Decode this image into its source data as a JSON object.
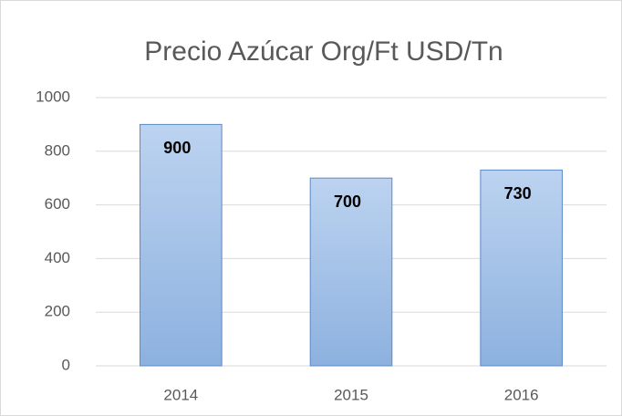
{
  "chart_data": {
    "type": "bar",
    "title": "Precio Azúcar Org/Ft USD/Tn",
    "categories": [
      "2014",
      "2015",
      "2016"
    ],
    "values": [
      900,
      700,
      730
    ],
    "color": "#9dbde6",
    "ylim": [
      0,
      1000
    ],
    "yticks": [
      0,
      200,
      400,
      600,
      800,
      1000
    ],
    "grid": true
  }
}
